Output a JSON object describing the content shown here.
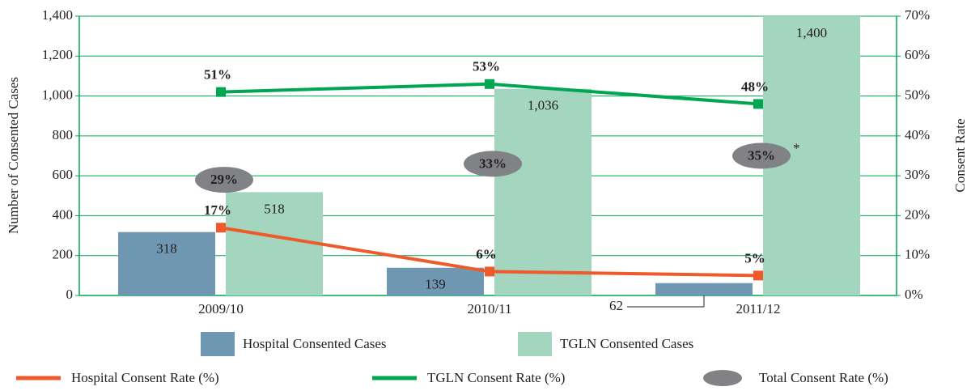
{
  "chart_data": {
    "type": "bar",
    "categories": [
      "2009/10",
      "2010/11",
      "2011/12"
    ],
    "series": [
      {
        "name": "Hospital Consented Cases",
        "color": "#7097b2",
        "values": [
          318,
          139,
          62
        ]
      },
      {
        "name": "TGLN Consented Cases",
        "color": "#a3d5bf",
        "values": [
          518,
          1036,
          1400
        ],
        "value_labels": [
          "518",
          "1,036",
          "1,400"
        ]
      },
      {
        "name": "Hospital Consent Rate (%)",
        "type": "line",
        "axis": "y2",
        "color": "#ee5a2a",
        "values": [
          17,
          6,
          5
        ],
        "value_labels": [
          "17%",
          "6%",
          "5%"
        ]
      },
      {
        "name": "TGLN Consent Rate (%)",
        "type": "line",
        "axis": "y2",
        "color": "#00a651",
        "values": [
          51,
          53,
          48
        ],
        "value_labels": [
          "51%",
          "53%",
          "48%"
        ]
      },
      {
        "name": "Total Consent Rate (%)",
        "type": "ellipse",
        "axis": "y2",
        "color": "#808285",
        "values": [
          29,
          33,
          35
        ],
        "value_labels": [
          "29%",
          "33%",
          "35%"
        ]
      }
    ],
    "note_mark": "*",
    "ylabel": "Number of Consented Cases",
    "y2label": "Consent Rate",
    "ylim": [
      0,
      1400
    ],
    "yticks": [
      0,
      200,
      400,
      600,
      800,
      {
        "value": 1000,
        "label": "1,000"
      },
      {
        "value": 1200,
        "label": "1,200"
      },
      {
        "value": 1400,
        "label": "1,400"
      }
    ],
    "y2lim": [
      0,
      70
    ],
    "y2ticks": [
      {
        "value": 0,
        "label": "0%"
      },
      {
        "value": 10,
        "label": "10%"
      },
      {
        "value": 20,
        "label": "20%"
      },
      {
        "value": 30,
        "label": "30%"
      },
      {
        "value": 40,
        "label": "40%"
      },
      {
        "value": 50,
        "label": "50%"
      },
      {
        "value": 60,
        "label": "60%"
      },
      {
        "value": 70,
        "label": "70%"
      }
    ],
    "grid": true
  }
}
